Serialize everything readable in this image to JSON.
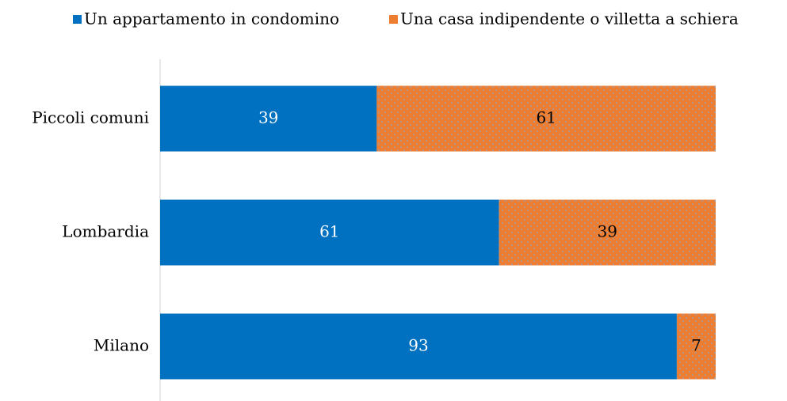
{
  "chart_data": {
    "type": "stacked_barh",
    "categories": [
      "Piccoli comuni",
      "Lombardia",
      "Milano"
    ],
    "series": [
      {
        "name": "Un appartamento in condomino",
        "color": "#0070C0",
        "values": [
          39,
          61,
          93
        ]
      },
      {
        "name": "Una casa indipendente o villetta a schiera",
        "color": "#ED7D31",
        "values": [
          61,
          39,
          7
        ]
      }
    ],
    "xlim": [
      0,
      100
    ],
    "legend": "top"
  }
}
